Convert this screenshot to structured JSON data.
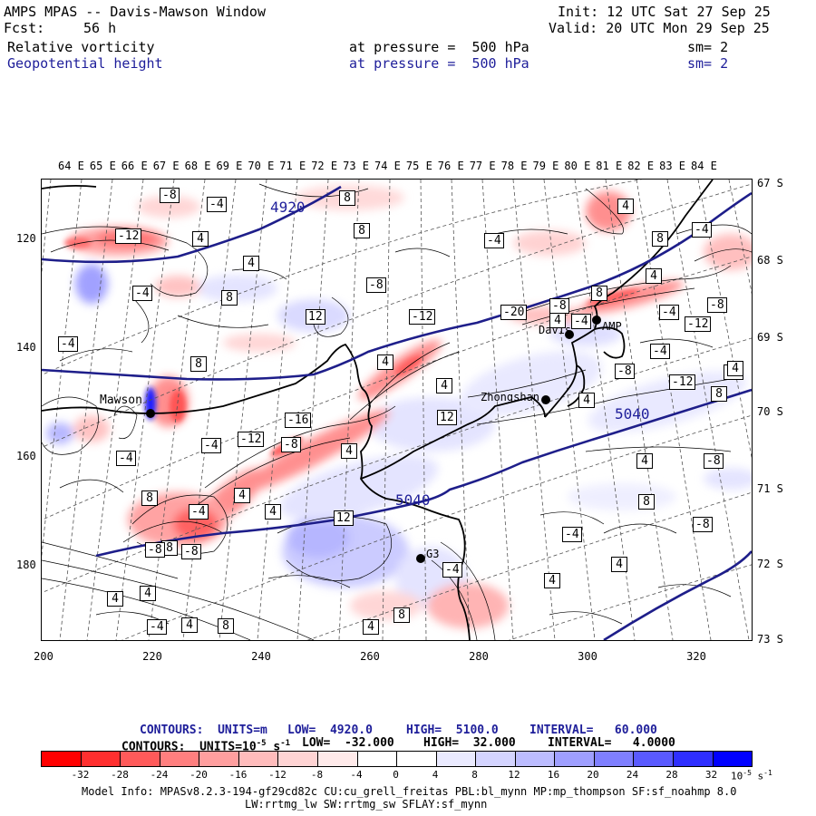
{
  "header": {
    "title": "AMPS MPAS -- Davis-Mawson Window",
    "fcst_label": "Fcst:",
    "fcst_value": "56 h",
    "init": "Init: 12 UTC Sat 27 Sep 25",
    "valid": "Valid: 20 UTC Mon 29 Sep 25",
    "field1": {
      "name": "Relative vorticity",
      "level": "at pressure =  500 hPa",
      "smooth": "sm= 2"
    },
    "field2": {
      "name": "Geopotential height",
      "level": "at pressure =  500 hPa",
      "smooth": "sm= 2"
    }
  },
  "axes": {
    "lon_labels": [
      "64 E",
      "65 E",
      "66 E",
      "67 E",
      "68 E",
      "69 E",
      "70 E",
      "71 E",
      "72 E",
      "73 E",
      "74 E",
      "75 E",
      "76 E",
      "77 E",
      "78 E",
      "79 E",
      "80 E",
      "81 E",
      "82 E",
      "83 E",
      "84 E"
    ],
    "lat_labels": [
      "67 S",
      "68 S",
      "69 S",
      "70 S",
      "71 S",
      "72 S",
      "73 S"
    ],
    "x_ticks": [
      "200",
      "220",
      "240",
      "260",
      "280",
      "300",
      "320"
    ],
    "y_ticks": [
      "120",
      "140",
      "160",
      "180"
    ]
  },
  "stations": {
    "mawson": "Mawson",
    "davis": "Davis",
    "zhongshan": "Zhongshan",
    "amp": "AMP",
    "g3": "G3"
  },
  "contour_labels": {
    "height": [
      "4920",
      "5040",
      "5040"
    ],
    "vorticity": [
      "-8",
      "-4",
      "-12",
      "4",
      "4",
      "-4",
      "8",
      "-4",
      "8",
      "12",
      "4",
      "-4",
      "8",
      "8",
      "-8",
      "-12",
      "-20",
      "-8",
      "8",
      "4",
      "8",
      "-4",
      "4",
      "-4",
      "-4",
      "-12",
      "-8",
      "12",
      "4",
      "-4",
      "-8",
      "-12",
      "4",
      "4",
      "8",
      "4",
      "-16",
      "12",
      "4",
      "-8",
      "-12",
      "-4",
      "-4",
      "4",
      "4",
      "8",
      "-4",
      "8",
      "12",
      "-8",
      "8",
      "-8",
      "4",
      "4",
      "-4",
      "4",
      "4",
      "8",
      "-4",
      "-4",
      "4",
      "4",
      "4",
      "-8",
      "8",
      "-8"
    ]
  },
  "footer": {
    "contours1": {
      "label": "CONTOURS:  UNITS=m",
      "low": "LOW=  4920.0",
      "high": "HIGH=  5100.0",
      "interval": "INTERVAL=   60.000"
    },
    "contours2": {
      "label": "CONTOURS:  UNITS=10",
      "exp": "-5",
      "unit": " s",
      "unitexp": "-1",
      "low": "LOW=  -32.000",
      "high": "HIGH=  32.000",
      "interval": "INTERVAL=   4.0000"
    },
    "colorbar_ticks": [
      "-32",
      "-28",
      "-24",
      "-20",
      "-16",
      "-12",
      "-8",
      "-4",
      "0",
      "4",
      "8",
      "12",
      "16",
      "20",
      "24",
      "28",
      "32"
    ],
    "colorbar_unit": "10",
    "colorbar_unit_exp": "-5",
    "colorbar_unit2": "s",
    "colorbar_unit2_exp": "-1",
    "colorbar_colors": [
      "#ff0000",
      "#ff2f2f",
      "#ff5a5a",
      "#ff7f7f",
      "#ff9f9f",
      "#ffbcbc",
      "#ffd4d4",
      "#ffeaea",
      "#ffffff",
      "#ffffff",
      "#eaeaff",
      "#d4d4ff",
      "#bcbcff",
      "#9f9fff",
      "#7f7fff",
      "#5a5aff",
      "#2f2fff",
      "#0000ff"
    ],
    "model_info": "Model Info: MPASv8.2.3-194-gf29cd82c CU:cu_grell_freitas PBL:bl_mynn MP:mp_thompson SF:sf_noahmp 8.0",
    "model_info2": "LW:rrtmg_lw SW:rrtmg_sw SFLAY:sf_mynn"
  }
}
